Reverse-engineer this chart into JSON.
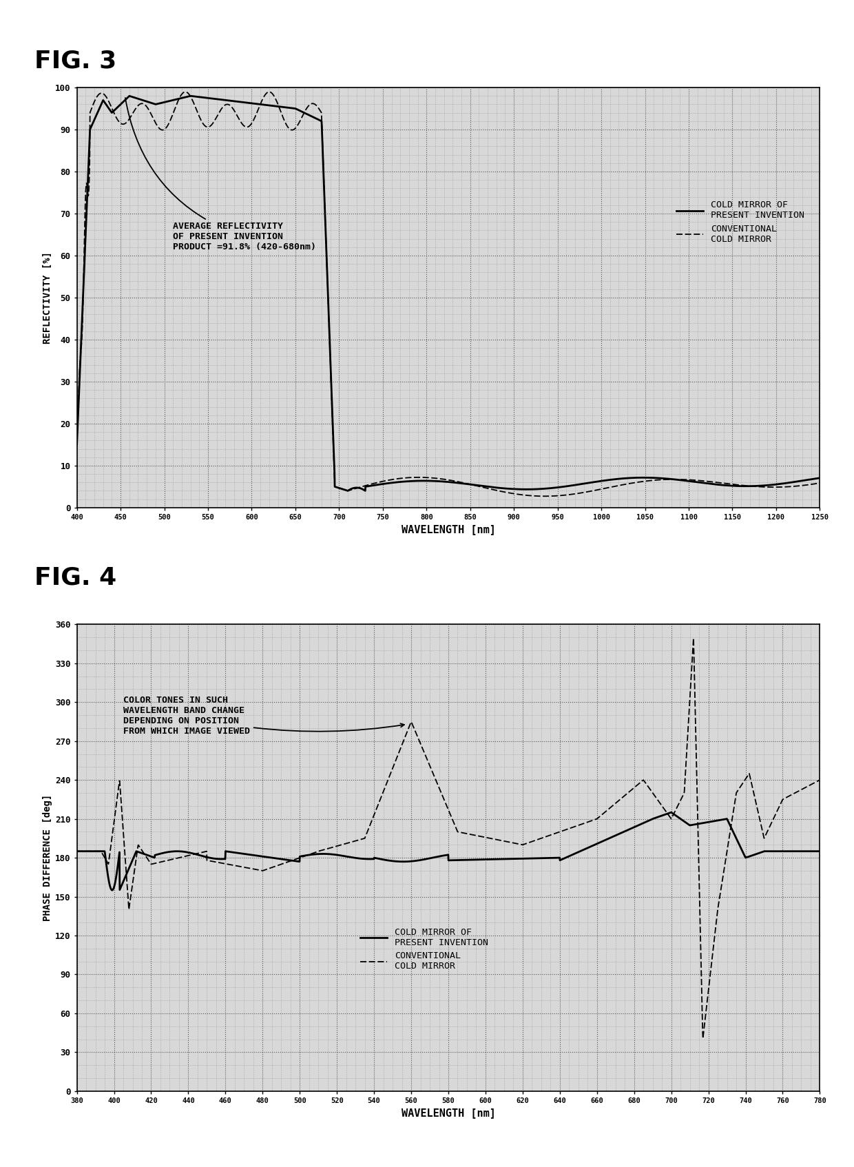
{
  "fig3": {
    "title": "FIG. 3",
    "annotation": "AVERAGE REFLECTIVITY\nOF PRESENT INVENTION\nPRODUCT =91.8% (420-680nm)",
    "xlabel": "WAVELENGTH [nm]",
    "ylabel": "REFLECTIVITY [%]",
    "xlim": [
      400,
      1250
    ],
    "ylim": [
      0,
      100
    ],
    "xticks": [
      400,
      450,
      500,
      550,
      600,
      650,
      700,
      750,
      800,
      850,
      900,
      950,
      1000,
      1050,
      1100,
      1150,
      1200,
      1250
    ],
    "yticks": [
      0,
      10,
      20,
      30,
      40,
      50,
      60,
      70,
      80,
      90,
      100
    ],
    "legend1": "COLD MIRROR OF\nPRESENT INVENTION",
    "legend2": "CONVENTIONAL\nCOLD MIRROR"
  },
  "fig4": {
    "title": "FIG. 4",
    "annotation": "COLOR TONES IN SUCH\nWAVELENGTH BAND CHANGE\nDEPENDING ON POSITION\nFROM WHICH IMAGE VIEWED",
    "xlabel": "WAVELENGTH [nm]",
    "ylabel": "PHASE DIFFERENCE [deg]",
    "xlim": [
      380,
      780
    ],
    "ylim": [
      0,
      360
    ],
    "xticks": [
      380,
      400,
      420,
      440,
      460,
      480,
      500,
      520,
      540,
      560,
      580,
      600,
      620,
      640,
      660,
      680,
      700,
      720,
      740,
      760,
      780
    ],
    "yticks": [
      0,
      30,
      60,
      90,
      120,
      150,
      180,
      210,
      240,
      270,
      300,
      330,
      360
    ],
    "legend1": "COLD MIRROR OF\nPRESENT INVENTION",
    "legend2": "CONVENTIONAL\nCOLD MIRROR"
  }
}
